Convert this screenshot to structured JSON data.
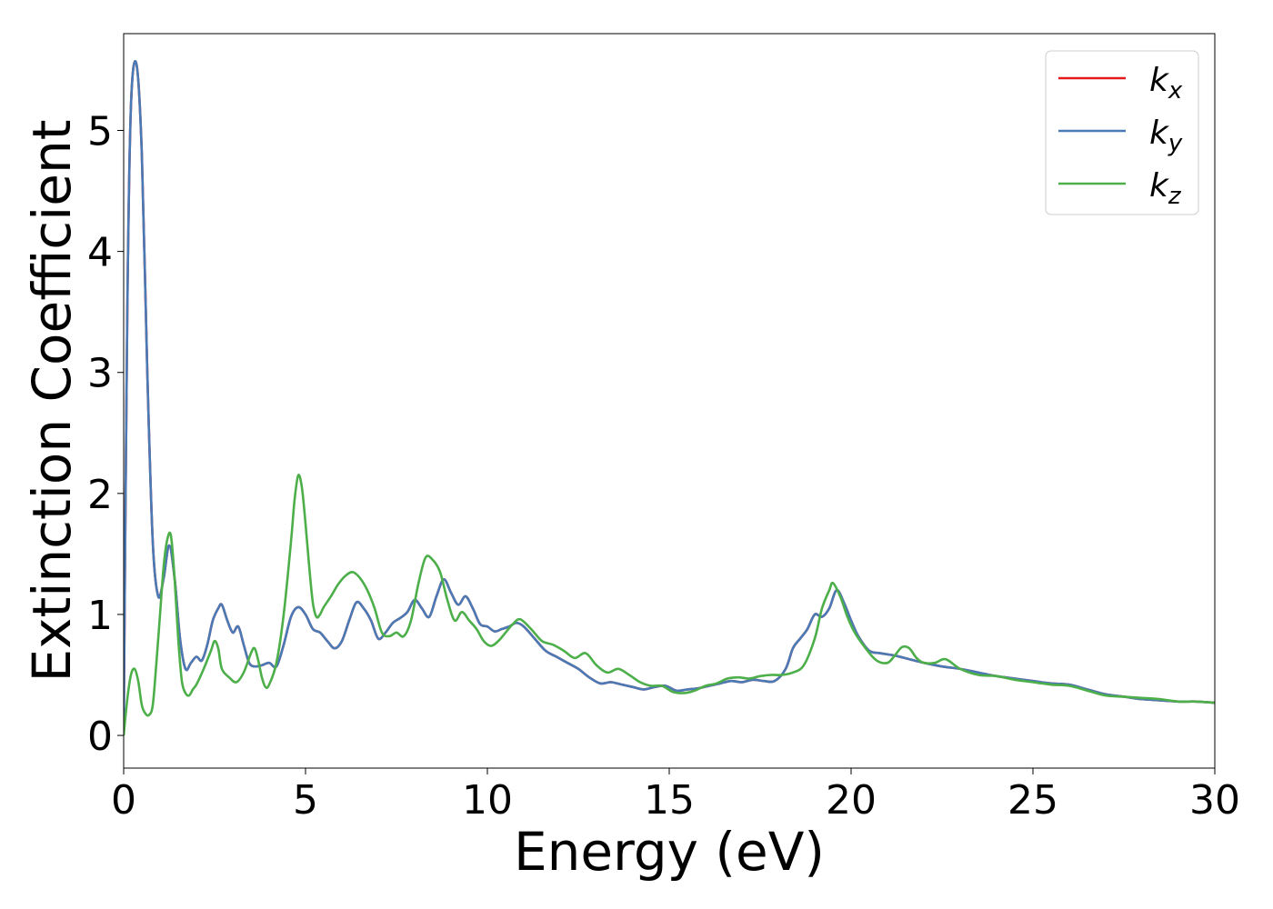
{
  "chart_data": {
    "type": "line",
    "xlabel": "Energy (eV)",
    "ylabel": "Extinction Coefficient",
    "xlim": [
      0,
      30
    ],
    "ylim": [
      -0.27,
      5.8
    ],
    "xticks": [
      0,
      5,
      10,
      15,
      20,
      25,
      30
    ],
    "xtick_labels": [
      "0",
      "5",
      "10",
      "15",
      "20",
      "25",
      "30"
    ],
    "yticks": [
      0,
      1,
      2,
      3,
      4,
      5
    ],
    "ytick_labels": [
      "0",
      "1",
      "2",
      "3",
      "4",
      "5"
    ],
    "grid": false,
    "legend_placement": "top-right",
    "series": [
      {
        "name": "k_x",
        "label_base": "k",
        "label_sub": "x",
        "color": "#e41a1c",
        "x": [
          0,
          0.1,
          0.2,
          0.35,
          0.5,
          0.65,
          0.8,
          0.95,
          1.1,
          1.25,
          1.4,
          1.55,
          1.7,
          1.85,
          2.0,
          2.15,
          2.3,
          2.45,
          2.6,
          2.7,
          2.85,
          3.0,
          3.15,
          3.3,
          3.45,
          3.6,
          3.8,
          4.0,
          4.2,
          4.4,
          4.6,
          4.8,
          5.0,
          5.2,
          5.4,
          5.6,
          5.8,
          6.0,
          6.2,
          6.4,
          6.6,
          6.8,
          7.0,
          7.2,
          7.4,
          7.6,
          7.8,
          8.0,
          8.2,
          8.4,
          8.6,
          8.8,
          9.0,
          9.2,
          9.4,
          9.6,
          9.8,
          10.0,
          10.2,
          10.4,
          10.6,
          10.8,
          11.0,
          11.3,
          11.6,
          11.9,
          12.2,
          12.5,
          12.8,
          13.1,
          13.4,
          13.7,
          14.0,
          14.3,
          14.6,
          14.9,
          15.2,
          15.5,
          15.8,
          16.1,
          16.4,
          16.7,
          17.0,
          17.3,
          17.6,
          17.9,
          18.2,
          18.4,
          18.6,
          18.8,
          19.0,
          19.2,
          19.4,
          19.6,
          19.8,
          20.0,
          20.2,
          20.5,
          20.8,
          21.2,
          21.6,
          22.0,
          22.5,
          23.0,
          23.5,
          24.0,
          24.5,
          25.0,
          25.5,
          26.0,
          26.5,
          27.0,
          27.5,
          28.0,
          28.5,
          29.0,
          29.5,
          30.0
        ],
        "y": [
          0.05,
          3.5,
          5.2,
          5.55,
          4.8,
          3.0,
          1.6,
          1.15,
          1.3,
          1.57,
          1.3,
          0.8,
          0.55,
          0.6,
          0.65,
          0.62,
          0.75,
          0.95,
          1.05,
          1.08,
          0.95,
          0.85,
          0.9,
          0.75,
          0.6,
          0.57,
          0.58,
          0.6,
          0.57,
          0.75,
          0.98,
          1.06,
          1.0,
          0.88,
          0.85,
          0.78,
          0.72,
          0.78,
          0.95,
          1.1,
          1.05,
          0.95,
          0.8,
          0.85,
          0.93,
          0.97,
          1.02,
          1.12,
          1.05,
          0.98,
          1.15,
          1.29,
          1.18,
          1.08,
          1.15,
          1.05,
          0.92,
          0.9,
          0.86,
          0.88,
          0.9,
          0.93,
          0.9,
          0.8,
          0.7,
          0.65,
          0.6,
          0.55,
          0.48,
          0.43,
          0.44,
          0.42,
          0.4,
          0.38,
          0.4,
          0.41,
          0.37,
          0.38,
          0.39,
          0.41,
          0.43,
          0.45,
          0.44,
          0.46,
          0.45,
          0.45,
          0.55,
          0.72,
          0.8,
          0.88,
          1.0,
          0.98,
          1.05,
          1.2,
          1.1,
          0.95,
          0.82,
          0.7,
          0.68,
          0.66,
          0.63,
          0.6,
          0.57,
          0.55,
          0.52,
          0.49,
          0.47,
          0.45,
          0.43,
          0.42,
          0.38,
          0.34,
          0.32,
          0.3,
          0.29,
          0.28,
          0.28,
          0.27
        ]
      },
      {
        "name": "k_y",
        "label_base": "k",
        "label_sub": "y",
        "color": "#4a7ab5",
        "x": [
          0,
          0.1,
          0.2,
          0.35,
          0.5,
          0.65,
          0.8,
          0.95,
          1.1,
          1.25,
          1.4,
          1.55,
          1.7,
          1.85,
          2.0,
          2.15,
          2.3,
          2.45,
          2.6,
          2.7,
          2.85,
          3.0,
          3.15,
          3.3,
          3.45,
          3.6,
          3.8,
          4.0,
          4.2,
          4.4,
          4.6,
          4.8,
          5.0,
          5.2,
          5.4,
          5.6,
          5.8,
          6.0,
          6.2,
          6.4,
          6.6,
          6.8,
          7.0,
          7.2,
          7.4,
          7.6,
          7.8,
          8.0,
          8.2,
          8.4,
          8.6,
          8.8,
          9.0,
          9.2,
          9.4,
          9.6,
          9.8,
          10.0,
          10.2,
          10.4,
          10.6,
          10.8,
          11.0,
          11.3,
          11.6,
          11.9,
          12.2,
          12.5,
          12.8,
          13.1,
          13.4,
          13.7,
          14.0,
          14.3,
          14.6,
          14.9,
          15.2,
          15.5,
          15.8,
          16.1,
          16.4,
          16.7,
          17.0,
          17.3,
          17.6,
          17.9,
          18.2,
          18.4,
          18.6,
          18.8,
          19.0,
          19.2,
          19.4,
          19.6,
          19.8,
          20.0,
          20.2,
          20.5,
          20.8,
          21.2,
          21.6,
          22.0,
          22.5,
          23.0,
          23.5,
          24.0,
          24.5,
          25.0,
          25.5,
          26.0,
          26.5,
          27.0,
          27.5,
          28.0,
          28.5,
          29.0,
          29.5,
          30.0
        ],
        "y": [
          0.05,
          3.5,
          5.2,
          5.55,
          4.8,
          3.0,
          1.6,
          1.15,
          1.3,
          1.57,
          1.3,
          0.8,
          0.55,
          0.6,
          0.65,
          0.62,
          0.75,
          0.95,
          1.05,
          1.08,
          0.95,
          0.85,
          0.9,
          0.75,
          0.6,
          0.57,
          0.58,
          0.6,
          0.57,
          0.75,
          0.98,
          1.06,
          1.0,
          0.88,
          0.85,
          0.78,
          0.72,
          0.78,
          0.95,
          1.1,
          1.05,
          0.95,
          0.8,
          0.85,
          0.93,
          0.97,
          1.02,
          1.12,
          1.05,
          0.98,
          1.15,
          1.29,
          1.18,
          1.08,
          1.15,
          1.05,
          0.92,
          0.9,
          0.86,
          0.88,
          0.9,
          0.93,
          0.9,
          0.8,
          0.7,
          0.65,
          0.6,
          0.55,
          0.48,
          0.43,
          0.44,
          0.42,
          0.4,
          0.38,
          0.4,
          0.41,
          0.37,
          0.38,
          0.39,
          0.41,
          0.43,
          0.45,
          0.44,
          0.46,
          0.45,
          0.45,
          0.55,
          0.72,
          0.8,
          0.88,
          1.0,
          0.98,
          1.05,
          1.2,
          1.1,
          0.95,
          0.82,
          0.7,
          0.68,
          0.66,
          0.63,
          0.6,
          0.57,
          0.55,
          0.52,
          0.49,
          0.47,
          0.45,
          0.43,
          0.42,
          0.38,
          0.34,
          0.32,
          0.3,
          0.29,
          0.28,
          0.28,
          0.27
        ]
      },
      {
        "name": "k_z",
        "label_base": "k",
        "label_sub": "z",
        "color": "#4daf4a",
        "x": [
          0,
          0.1,
          0.2,
          0.3,
          0.4,
          0.5,
          0.6,
          0.7,
          0.8,
          0.9,
          1.0,
          1.1,
          1.2,
          1.3,
          1.4,
          1.5,
          1.6,
          1.7,
          1.8,
          1.9,
          2.0,
          2.2,
          2.4,
          2.5,
          2.6,
          2.7,
          2.9,
          3.1,
          3.3,
          3.5,
          3.6,
          3.7,
          3.8,
          3.9,
          4.0,
          4.2,
          4.4,
          4.6,
          4.7,
          4.8,
          4.9,
          5.0,
          5.1,
          5.2,
          5.3,
          5.4,
          5.5,
          5.7,
          5.9,
          6.1,
          6.3,
          6.5,
          6.7,
          6.9,
          7.1,
          7.3,
          7.5,
          7.7,
          7.9,
          8.1,
          8.3,
          8.5,
          8.7,
          8.9,
          9.1,
          9.3,
          9.5,
          9.7,
          9.9,
          10.1,
          10.3,
          10.5,
          10.7,
          10.9,
          11.2,
          11.5,
          11.8,
          12.1,
          12.4,
          12.7,
          13.0,
          13.3,
          13.6,
          13.9,
          14.2,
          14.5,
          14.8,
          15.1,
          15.4,
          15.7,
          16.0,
          16.3,
          16.6,
          16.9,
          17.2,
          17.5,
          17.8,
          18.1,
          18.4,
          18.7,
          19.0,
          19.2,
          19.4,
          19.5,
          19.7,
          19.9,
          20.1,
          20.4,
          20.7,
          21.0,
          21.2,
          21.4,
          21.6,
          21.8,
          22.0,
          22.3,
          22.6,
          23.0,
          23.5,
          24.0,
          24.5,
          25.0,
          25.5,
          26.0,
          26.5,
          27.0,
          27.5,
          28.0,
          28.5,
          29.0,
          29.5,
          30.0
        ],
        "y": [
          0.0,
          0.3,
          0.5,
          0.55,
          0.45,
          0.25,
          0.18,
          0.17,
          0.25,
          0.6,
          1.0,
          1.4,
          1.62,
          1.65,
          1.3,
          0.8,
          0.45,
          0.35,
          0.33,
          0.38,
          0.42,
          0.55,
          0.7,
          0.78,
          0.72,
          0.55,
          0.48,
          0.44,
          0.52,
          0.68,
          0.72,
          0.62,
          0.48,
          0.4,
          0.42,
          0.6,
          1.0,
          1.6,
          1.95,
          2.15,
          2.05,
          1.75,
          1.4,
          1.1,
          0.98,
          1.0,
          1.06,
          1.15,
          1.25,
          1.32,
          1.35,
          1.3,
          1.2,
          1.05,
          0.85,
          0.82,
          0.85,
          0.82,
          0.95,
          1.25,
          1.47,
          1.45,
          1.35,
          1.12,
          0.95,
          1.02,
          0.95,
          0.88,
          0.78,
          0.74,
          0.78,
          0.85,
          0.92,
          0.96,
          0.88,
          0.78,
          0.75,
          0.7,
          0.64,
          0.68,
          0.58,
          0.52,
          0.55,
          0.5,
          0.44,
          0.41,
          0.41,
          0.36,
          0.35,
          0.37,
          0.41,
          0.43,
          0.47,
          0.48,
          0.47,
          0.49,
          0.5,
          0.5,
          0.52,
          0.58,
          0.8,
          1.05,
          1.2,
          1.26,
          1.15,
          0.98,
          0.85,
          0.72,
          0.62,
          0.6,
          0.66,
          0.73,
          0.72,
          0.64,
          0.6,
          0.6,
          0.63,
          0.55,
          0.5,
          0.49,
          0.46,
          0.44,
          0.42,
          0.41,
          0.37,
          0.33,
          0.32,
          0.31,
          0.3,
          0.28,
          0.28,
          0.27
        ]
      }
    ]
  }
}
